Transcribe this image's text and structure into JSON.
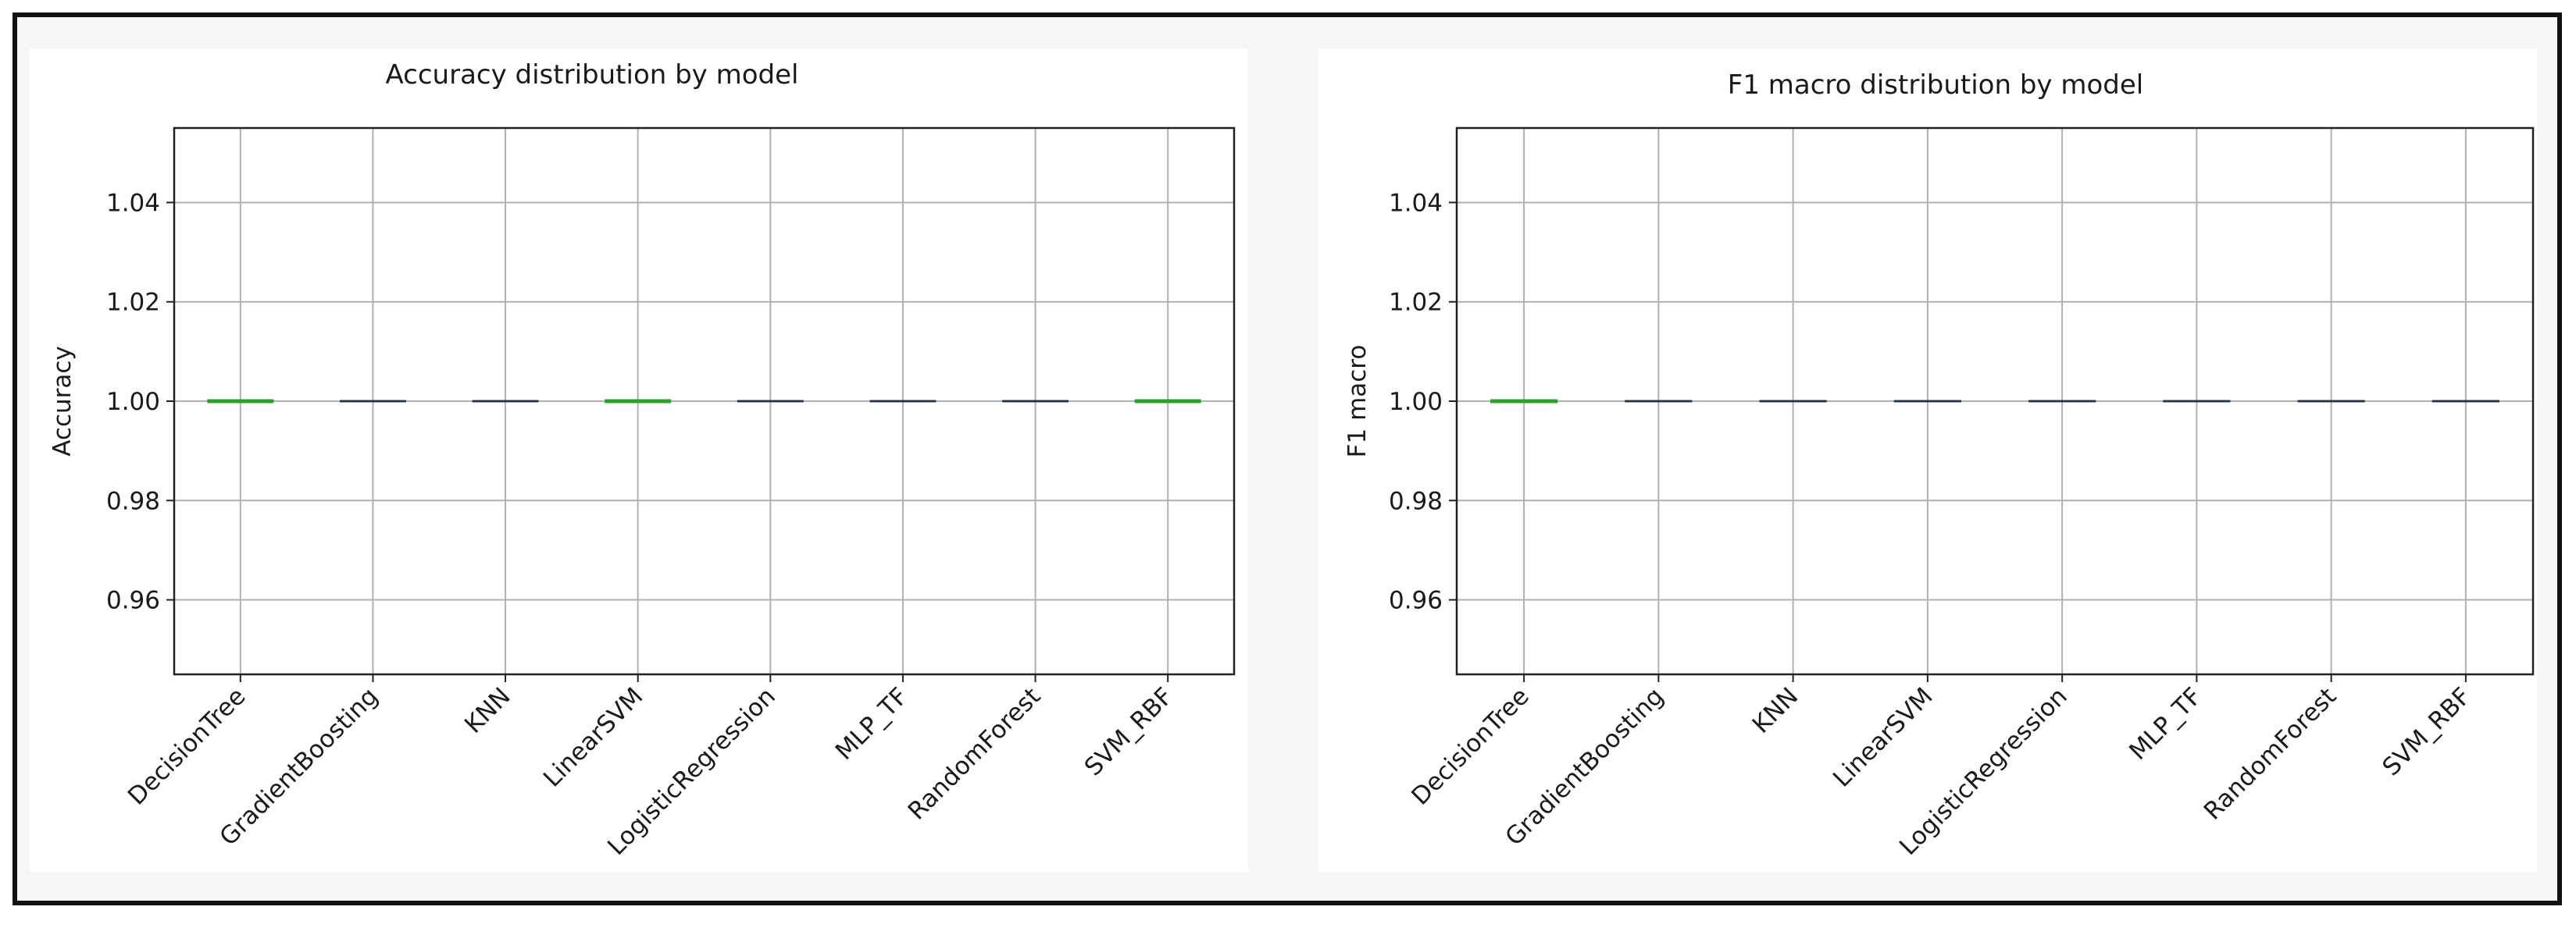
{
  "chart_data": [
    {
      "type": "box",
      "title": "Accuracy distribution by model",
      "ylabel": "Accuracy",
      "categories": [
        "DecisionTree",
        "GradientBoosting",
        "KNN",
        "LinearSVM",
        "LogisticRegression",
        "MLP_TF",
        "RandomForest",
        "SVM_RBF"
      ],
      "values": [
        1.0,
        1.0,
        1.0,
        1.0,
        1.0,
        1.0,
        1.0,
        1.0
      ],
      "median_color_highlight": [
        true,
        false,
        false,
        true,
        false,
        false,
        false,
        true
      ],
      "yticks": [
        0.96,
        0.98,
        1.0,
        1.02,
        1.04
      ],
      "ytick_labels": [
        "0.96",
        "0.98",
        "1.00",
        "1.02",
        "1.04"
      ],
      "ylim": [
        0.945,
        1.055
      ],
      "grid": true
    },
    {
      "type": "box",
      "title": "F1 macro distribution by model",
      "ylabel": "F1 macro",
      "categories": [
        "DecisionTree",
        "GradientBoosting",
        "KNN",
        "LinearSVM",
        "LogisticRegression",
        "MLP_TF",
        "RandomForest",
        "SVM_RBF"
      ],
      "values": [
        1.0,
        1.0,
        1.0,
        1.0,
        1.0,
        1.0,
        1.0,
        1.0
      ],
      "median_color_highlight": [
        true,
        false,
        false,
        false,
        false,
        false,
        false,
        false
      ],
      "yticks": [
        0.96,
        0.98,
        1.0,
        1.02,
        1.04
      ],
      "ytick_labels": [
        "0.96",
        "0.98",
        "1.00",
        "1.02",
        "1.04"
      ],
      "ylim": [
        0.945,
        1.055
      ],
      "grid": true
    }
  ],
  "colors": {
    "median": "#2ca02c",
    "box": "#1f4e79",
    "grid": "#b0b0b0",
    "axes": "#222222"
  }
}
